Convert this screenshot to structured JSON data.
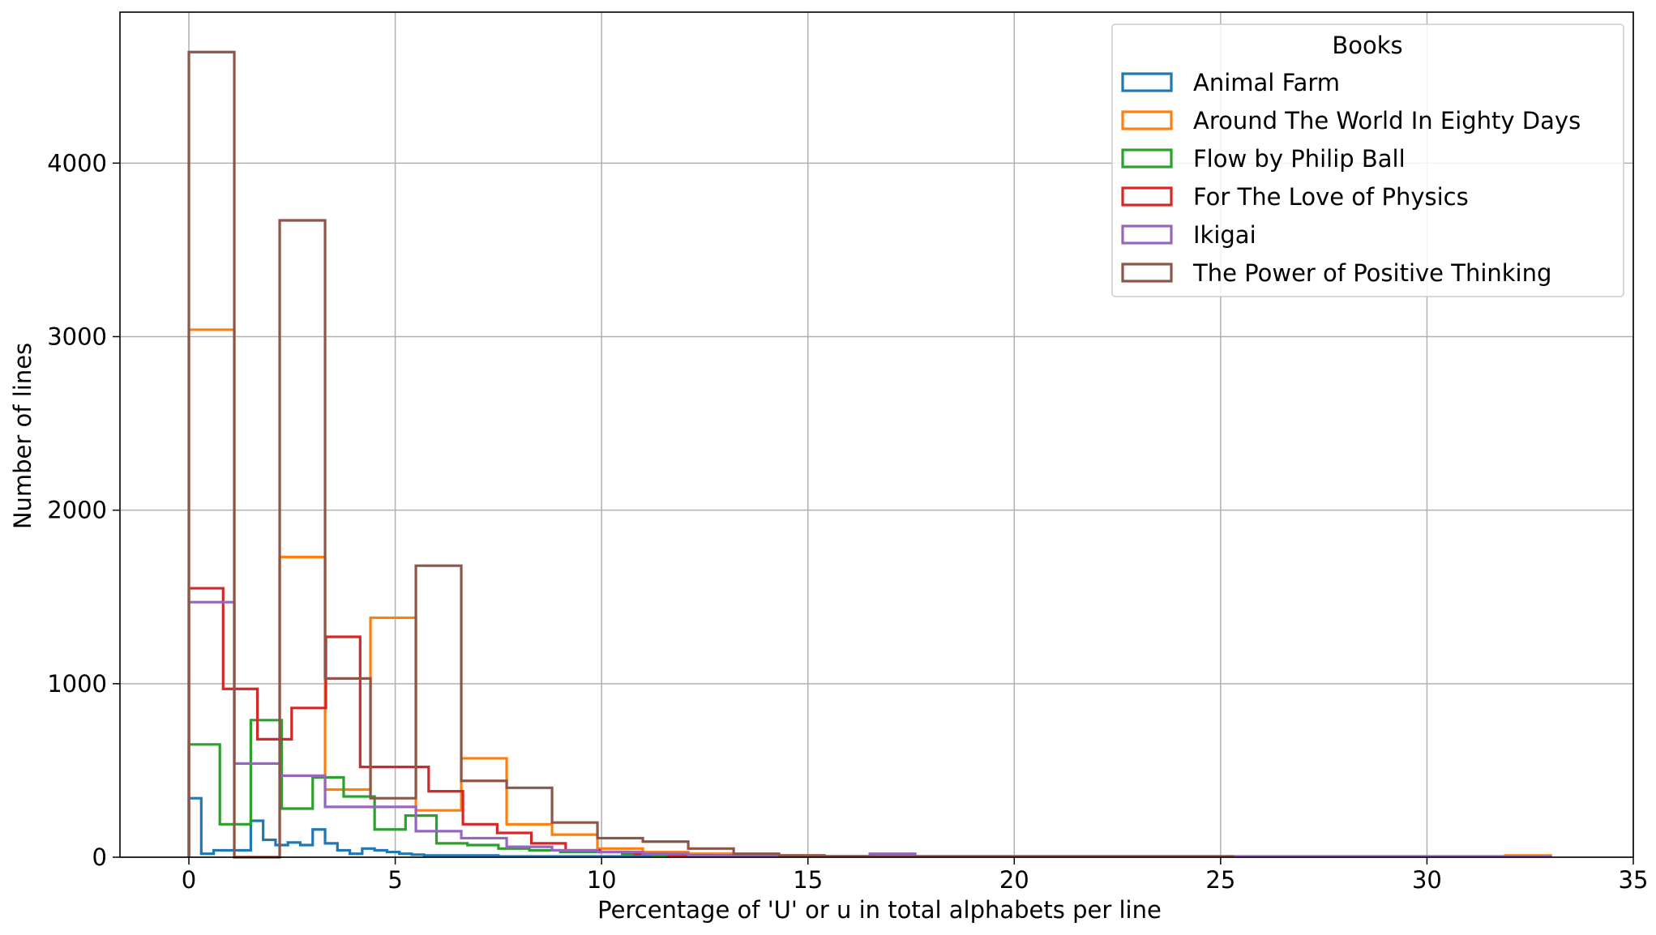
{
  "chart_data": {
    "type": "histogram",
    "xlabel": "Percentage of 'U' or u in total alphabets per line",
    "ylabel": "Number of lines",
    "xlim": [
      -1.67,
      35
    ],
    "ylim": [
      0,
      4870
    ],
    "xticks": [
      0,
      5,
      10,
      15,
      20,
      25,
      30,
      35
    ],
    "yticks": [
      0,
      1000,
      2000,
      3000,
      4000
    ],
    "grid": true,
    "legend": {
      "title": "Books",
      "position": "top-right"
    },
    "series": [
      {
        "name": "Animal Farm",
        "color": "#1f77b4",
        "bin_start": 0,
        "bin_width": 0.3,
        "counts": [
          340,
          20,
          40,
          40,
          40,
          210,
          100,
          70,
          85,
          70,
          160,
          80,
          40,
          20,
          50,
          40,
          30,
          20,
          15,
          10,
          10,
          10,
          10,
          10,
          10,
          5,
          5,
          5,
          5,
          5,
          5,
          5,
          5,
          5,
          5,
          5,
          5,
          5,
          5,
          5
        ]
      },
      {
        "name": "Around The World In Eighty Days",
        "color": "#ff7f0e",
        "bin_start": 0,
        "bin_width": 1.1,
        "counts": [
          3040,
          0,
          1730,
          390,
          1380,
          270,
          570,
          190,
          130,
          50,
          30,
          20,
          10,
          10,
          5,
          5,
          5,
          5,
          5,
          5,
          5,
          5,
          5,
          5,
          5,
          5,
          5,
          5,
          5,
          10
        ]
      },
      {
        "name": "Flow by Philip Ball",
        "color": "#2ca02c",
        "bin_start": 0,
        "bin_width": 0.75,
        "counts": [
          650,
          190,
          790,
          280,
          460,
          350,
          160,
          240,
          80,
          70,
          50,
          40,
          30,
          30,
          20,
          10,
          10,
          5,
          5,
          5
        ]
      },
      {
        "name": "For The Love of Physics",
        "color": "#d62728",
        "bin_start": 0,
        "bin_width": 0.83,
        "counts": [
          1550,
          970,
          680,
          860,
          1270,
          520,
          520,
          380,
          190,
          140,
          80,
          40,
          30,
          20,
          10,
          10,
          10,
          5,
          5,
          5
        ]
      },
      {
        "name": "Ikigai",
        "color": "#9467bd",
        "bin_start": 0,
        "bin_width": 1.1,
        "counts": [
          1470,
          540,
          470,
          290,
          290,
          150,
          110,
          60,
          40,
          30,
          20,
          10,
          10,
          5,
          5,
          20,
          5,
          5,
          5,
          5,
          5,
          5,
          5,
          5,
          5,
          5,
          5,
          5,
          5,
          5
        ]
      },
      {
        "name": "The Power of Positive Thinking",
        "color": "#8c564b",
        "bin_start": 0,
        "bin_width": 1.1,
        "counts": [
          4640,
          0,
          3670,
          1030,
          340,
          1680,
          440,
          400,
          200,
          110,
          90,
          50,
          20,
          10,
          5,
          5,
          5,
          5,
          5,
          5,
          5,
          5,
          5
        ]
      }
    ]
  }
}
